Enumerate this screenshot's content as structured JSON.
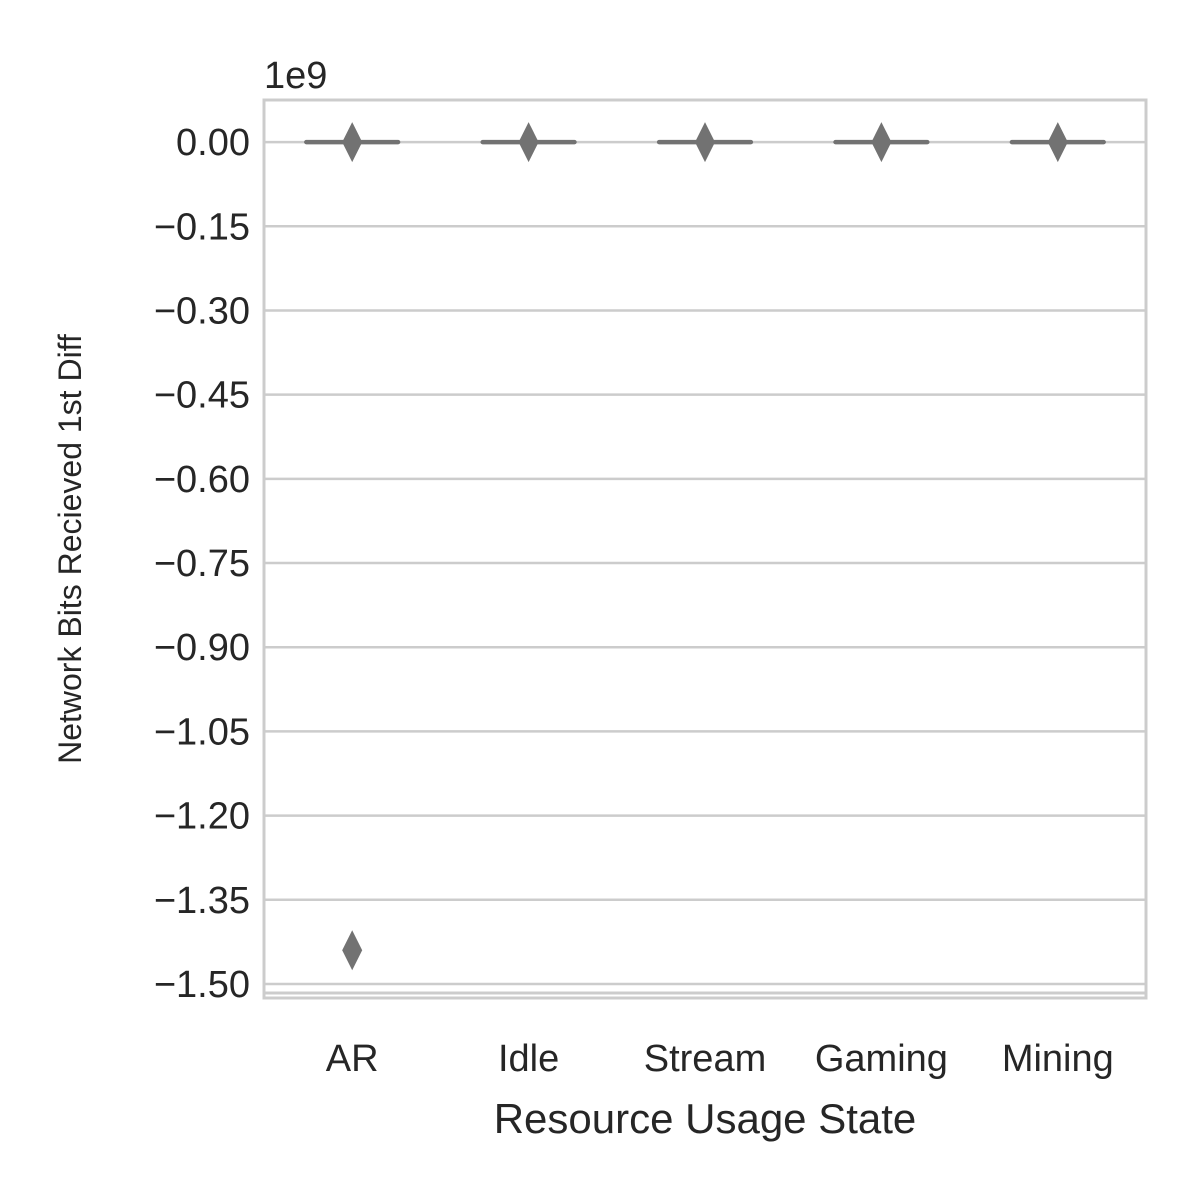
{
  "chart_data": {
    "type": "box",
    "offset_label": "1e9",
    "xlabel": "Resource Usage State",
    "ylabel": "Network Bits Recieved 1st Diff",
    "categories": [
      "AR",
      "Idle",
      "Stream",
      "Gaming",
      "Mining"
    ],
    "ylim": [
      -1.525,
      0.075
    ],
    "yticks": [
      0.0,
      -0.15,
      -0.3,
      -0.45,
      -0.6,
      -0.75,
      -0.9,
      -1.05,
      -1.2,
      -1.35,
      -1.5
    ],
    "ytick_labels": [
      "0.00",
      "−0.15",
      "−0.30",
      "−0.45",
      "−0.60",
      "−0.75",
      "−0.90",
      "−1.05",
      "−1.20",
      "−1.35",
      "−1.50"
    ],
    "grid": true,
    "color": "#727272",
    "boxes": [
      {
        "category": "AR",
        "q1": 0.0,
        "median": 0.0,
        "q3": 0.0,
        "whisker_low": 0.0,
        "whisker_high": 0.0,
        "fliers": [
          0.0,
          -1.44
        ]
      },
      {
        "category": "Idle",
        "q1": 0.0,
        "median": 0.0,
        "q3": 0.0,
        "whisker_low": 0.0,
        "whisker_high": 0.0,
        "fliers": [
          0.0
        ]
      },
      {
        "category": "Stream",
        "q1": 0.0,
        "median": 0.0,
        "q3": 0.0,
        "whisker_low": 0.0,
        "whisker_high": 0.0,
        "fliers": [
          0.0
        ]
      },
      {
        "category": "Gaming",
        "q1": 0.0,
        "median": 0.0,
        "q3": 0.0,
        "whisker_low": 0.0,
        "whisker_high": 0.0,
        "fliers": [
          0.0
        ]
      },
      {
        "category": "Mining",
        "q1": 0.0,
        "median": 0.0,
        "q3": 0.0,
        "whisker_low": 0.0,
        "whisker_high": 0.0,
        "fliers": [
          0.0
        ]
      }
    ]
  }
}
